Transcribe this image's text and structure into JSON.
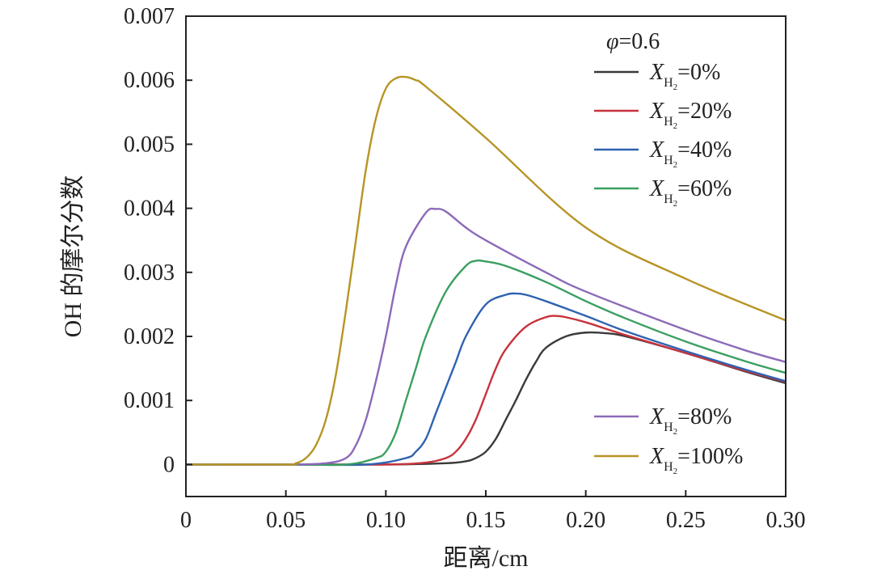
{
  "chart_data": {
    "type": "line",
    "xlabel": "距离/cm",
    "ylabel": "OH 的摩尔分数",
    "xlim": [
      0,
      0.3
    ],
    "ylim": [
      -0.0005,
      0.007
    ],
    "x_ticks": [
      0,
      0.05,
      0.1,
      0.15,
      0.2,
      0.25,
      0.3
    ],
    "x_tick_labels": [
      "0",
      "0.05",
      "0.10",
      "0.15",
      "0.20",
      "0.25",
      "0.30"
    ],
    "y_ticks": [
      0,
      0.001,
      0.002,
      0.003,
      0.004,
      0.005,
      0.006,
      0.007
    ],
    "y_tick_labels": [
      "0",
      "0.001",
      "0.002",
      "0.003",
      "0.004",
      "0.005",
      "0.006",
      "0.007"
    ],
    "grid": false,
    "legend": {
      "position": "top-right",
      "title_symbol": "φ",
      "title_rest": "=0.6",
      "var_symbol": "X",
      "var_subscript": "H",
      "var_sub2": "2",
      "entry_suffixes": [
        "=0%",
        "=20%",
        "=40%",
        "=60%",
        "=80%",
        "=100%"
      ]
    },
    "series": [
      {
        "color": "#3a3a3a",
        "x": [
          0,
          0.05,
          0.1,
          0.13,
          0.14,
          0.145,
          0.15,
          0.155,
          0.16,
          0.165,
          0.17,
          0.175,
          0.18,
          0.19,
          0.2,
          0.21,
          0.22,
          0.25,
          0.28,
          0.3
        ],
        "y": [
          0,
          0,
          0,
          2e-05,
          5e-05,
          0.0001,
          0.0002,
          0.0004,
          0.0007,
          0.001,
          0.00132,
          0.0016,
          0.00182,
          0.002,
          0.00206,
          0.00205,
          0.002,
          0.00174,
          0.00145,
          0.00127
        ]
      },
      {
        "color": "#c8323c",
        "x": [
          0,
          0.05,
          0.1,
          0.12,
          0.13,
          0.135,
          0.14,
          0.145,
          0.15,
          0.155,
          0.16,
          0.17,
          0.18,
          0.185,
          0.19,
          0.2,
          0.22,
          0.25,
          0.28,
          0.3
        ],
        "y": [
          0,
          0,
          0,
          3e-05,
          0.0001,
          0.0002,
          0.0004,
          0.0007,
          0.0011,
          0.0015,
          0.0018,
          0.00215,
          0.0023,
          0.00232,
          0.0023,
          0.00222,
          0.00202,
          0.00174,
          0.00146,
          0.00129
        ]
      },
      {
        "color": "#2f62b0",
        "x": [
          0,
          0.05,
          0.09,
          0.11,
          0.115,
          0.12,
          0.125,
          0.13,
          0.135,
          0.14,
          0.15,
          0.16,
          0.165,
          0.17,
          0.18,
          0.2,
          0.22,
          0.25,
          0.28,
          0.3
        ],
        "y": [
          0,
          0,
          0,
          0.0001,
          0.0002,
          0.0004,
          0.0008,
          0.0012,
          0.0016,
          0.002,
          0.0025,
          0.00265,
          0.00267,
          0.00265,
          0.00255,
          0.00232,
          0.00208,
          0.00177,
          0.00148,
          0.0013
        ]
      },
      {
        "color": "#3a9f60",
        "x": [
          0,
          0.05,
          0.08,
          0.095,
          0.1,
          0.105,
          0.11,
          0.115,
          0.12,
          0.13,
          0.14,
          0.145,
          0.15,
          0.16,
          0.18,
          0.2,
          0.22,
          0.25,
          0.28,
          0.3
        ],
        "y": [
          0,
          0,
          0,
          0.0001,
          0.0002,
          0.0005,
          0.001,
          0.0015,
          0.002,
          0.0027,
          0.0031,
          0.00318,
          0.00317,
          0.0031,
          0.00285,
          0.00255,
          0.00228,
          0.00192,
          0.00161,
          0.00143
        ]
      },
      {
        "color": "#8c6ab8",
        "x": [
          0,
          0.05,
          0.07,
          0.08,
          0.085,
          0.09,
          0.095,
          0.1,
          0.105,
          0.11,
          0.12,
          0.125,
          0.13,
          0.14,
          0.15,
          0.18,
          0.2,
          0.25,
          0.28,
          0.3
        ],
        "y": [
          0,
          0,
          2e-05,
          0.0001,
          0.0003,
          0.0007,
          0.0013,
          0.002,
          0.0028,
          0.0034,
          0.00393,
          0.00399,
          0.00395,
          0.0037,
          0.0035,
          0.003,
          0.0027,
          0.0021,
          0.00178,
          0.0016
        ]
      },
      {
        "color": "#b79424",
        "x": [
          0,
          0.05,
          0.055,
          0.06,
          0.065,
          0.07,
          0.075,
          0.08,
          0.085,
          0.09,
          0.095,
          0.1,
          0.105,
          0.11,
          0.115,
          0.12,
          0.15,
          0.2,
          0.25,
          0.3
        ],
        "y": [
          0,
          0,
          2e-05,
          0.0001,
          0.0003,
          0.0007,
          0.0014,
          0.0024,
          0.0035,
          0.0046,
          0.0054,
          0.00587,
          0.00603,
          0.00605,
          0.006,
          0.0059,
          0.0051,
          0.0037,
          0.0029,
          0.00225
        ]
      }
    ]
  }
}
